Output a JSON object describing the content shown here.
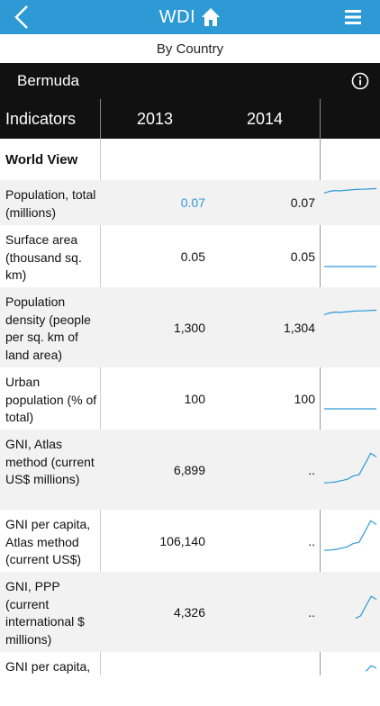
{
  "app": {
    "title": "WDI",
    "subtitle": "By Country"
  },
  "country": "Bermuda",
  "header": {
    "indicators": "Indicators",
    "year1": "2013",
    "year2": "2014"
  },
  "rows": [
    {
      "label": "World View",
      "section": true
    },
    {
      "label": "Population, total (millions)",
      "v1": "0.07",
      "v2": "0.07",
      "spark": [
        0.55,
        0.7,
        0.78,
        0.75,
        0.8,
        0.84,
        0.88,
        0.9,
        0.92,
        0.95,
        0.96
      ]
    },
    {
      "label": "Surface area (thousand sq. km)",
      "v1": "0.05",
      "v2": "0.05",
      "spark": [
        0.5,
        0.5,
        0.5,
        0.5,
        0.5,
        0.5,
        0.5,
        0.5,
        0.5,
        0.5,
        0.5
      ]
    },
    {
      "label": "Population density (people per sq. km of land area)",
      "v1": "1,300",
      "v2": "1,304",
      "spark": [
        0.55,
        0.7,
        0.78,
        0.75,
        0.8,
        0.84,
        0.88,
        0.9,
        0.92,
        0.95,
        0.96
      ]
    },
    {
      "label": "Urban population (% of total)",
      "v1": "100",
      "v2": "100",
      "spark": [
        0.5,
        0.5,
        0.5,
        0.5,
        0.5,
        0.5,
        0.5,
        0.5,
        0.5,
        0.5,
        0.5
      ]
    },
    {
      "label": "GNI, Atlas method (current US$ millions)",
      "v1": "6,899",
      "v2": "..",
      "spark": [
        0.05,
        0.06,
        0.08,
        0.12,
        0.16,
        0.26,
        0.3,
        0.62,
        0.96,
        0.85
      ]
    },
    {
      "label": "GNI per capita, Atlas method (current US$)",
      "v1": "106,140",
      "v2": "..",
      "spark": [
        0.05,
        0.06,
        0.08,
        0.12,
        0.16,
        0.26,
        0.3,
        0.62,
        0.96,
        0.85
      ]
    },
    {
      "label": "GNI, PPP (current international $ millions)",
      "v1": "4,326",
      "v2": "..",
      "spark": [
        null,
        null,
        null,
        null,
        null,
        null,
        0.05,
        0.15,
        0.55,
        0.92,
        0.8
      ]
    },
    {
      "label": "GNI per capita,",
      "v1": "",
      "v2": "",
      "spark": [
        null,
        null,
        null,
        null,
        null,
        null,
        null,
        null,
        0.3,
        0.8,
        0.6
      ]
    }
  ],
  "colors": {
    "accent": "#2d9ad6",
    "dark": "#111111"
  }
}
